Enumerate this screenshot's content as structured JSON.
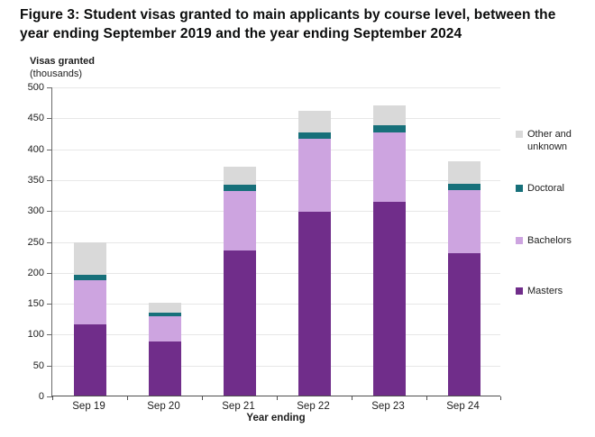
{
  "figure": {
    "title": "Figure 3: Student visas granted to main applicants by course level, between the year ending September 2019 and the year ending September 2024"
  },
  "y_axis": {
    "title": "Visas granted",
    "subtitle": "(thousands)"
  },
  "x_axis": {
    "title": "Year ending"
  },
  "chart_data": {
    "type": "bar",
    "stacked": true,
    "title": "Student visas granted to main applicants by course level",
    "categories": [
      "Sep 19",
      "Sep 20",
      "Sep 21",
      "Sep 22",
      "Sep 23",
      "Sep 24"
    ],
    "series": [
      {
        "name": "Masters",
        "color": "#702d8a",
        "values": [
          115,
          87,
          235,
          298,
          313,
          230
        ]
      },
      {
        "name": "Bachelors",
        "color": "#cda4e0",
        "values": [
          72,
          41,
          96,
          117,
          112,
          102
        ]
      },
      {
        "name": "Doctoral",
        "color": "#17707a",
        "values": [
          9,
          6,
          10,
          10,
          12,
          11
        ]
      },
      {
        "name": "Other and unknown",
        "color": "#d9d9d9",
        "values": [
          52,
          16,
          29,
          36,
          33,
          36
        ]
      }
    ],
    "totals": [
      248,
      150,
      370,
      461,
      470,
      379
    ],
    "xlabel": "Year ending",
    "ylabel": "Visas granted (thousands)",
    "ylim": [
      0,
      500
    ],
    "ytick_step": 50,
    "grid": true,
    "legend_position": "right",
    "legend_order_top_to_bottom": [
      "Other and unknown",
      "Doctoral",
      "Bachelors",
      "Masters"
    ]
  }
}
